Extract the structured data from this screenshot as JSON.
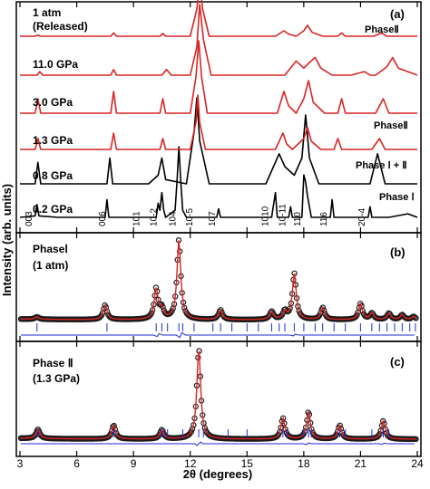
{
  "chart_data": [
    {
      "panel_label": "(a)",
      "type": "line",
      "xlim": [
        3,
        24
      ],
      "series": [
        {
          "name": "0.2 GPa",
          "color": "#000000",
          "x": [
            3,
            3.8,
            3.9,
            4.0,
            5,
            7.5,
            7.6,
            7.7,
            9.5,
            10.2,
            10.3,
            10.4,
            10.5,
            10.6,
            10.7,
            11.2,
            11.3,
            11.4,
            11.5,
            11.6,
            11.8,
            12.5,
            13.4,
            13.5,
            13.6,
            15,
            16.3,
            16.5,
            16.6,
            17.2,
            17.3,
            17.4,
            17.9,
            18.0,
            18.1,
            18.2,
            18.4,
            19.4,
            19.5,
            19.6,
            20.5,
            21.4,
            21.5,
            21.6,
            22.5,
            23.5,
            24
          ],
          "y": [
            0,
            0.02,
            0.18,
            0.02,
            0,
            0,
            0.25,
            0,
            0,
            0,
            0.2,
            0.1,
            0.35,
            0.1,
            0,
            0.1,
            0.5,
            1.0,
            0.5,
            0.1,
            0,
            0,
            0,
            0.12,
            0,
            0,
            0,
            0.35,
            0,
            0,
            0.15,
            0,
            0,
            0.6,
            0.5,
            0.3,
            0,
            0,
            0.25,
            0,
            0,
            0,
            0.15,
            0,
            0,
            0.05,
            0
          ]
        },
        {
          "name": "0.8 GPa",
          "color": "#000000",
          "x": [
            3,
            3.8,
            3.95,
            4.1,
            5,
            7.6,
            7.75,
            7.9,
            9.8,
            10.3,
            10.5,
            10.7,
            11.8,
            12.2,
            12.35,
            12.5,
            13.0,
            16.0,
            16.7,
            17.0,
            17.5,
            17.9,
            18.1,
            18.3,
            18.8,
            20.0,
            21.5,
            21.9,
            22.3,
            23,
            24
          ],
          "y": [
            0,
            0,
            0.25,
            0,
            0,
            0,
            0.3,
            0,
            0,
            0.1,
            0.3,
            0.05,
            0,
            0.6,
            1.0,
            0.5,
            0,
            0,
            0.35,
            0.2,
            0.1,
            0.3,
            0.8,
            0.3,
            0,
            0,
            0,
            0.35,
            0,
            0,
            0
          ]
        },
        {
          "name": "1.3 GPa",
          "color": "#d92525",
          "x": [
            3,
            3.8,
            3.95,
            4.1,
            5,
            7.8,
            7.95,
            8.1,
            10,
            10.4,
            10.55,
            10.7,
            12.0,
            12.3,
            12.4,
            12.5,
            12.8,
            16.5,
            16.9,
            17.1,
            17.4,
            18.0,
            18.2,
            18.4,
            18.9,
            19.6,
            19.8,
            20.0,
            21.6,
            22.0,
            22.3,
            24
          ],
          "y": [
            0,
            0,
            0.2,
            0,
            0,
            0,
            0.3,
            0,
            0,
            0,
            0.2,
            0,
            0,
            0.5,
            1.0,
            0.5,
            0,
            0,
            0.3,
            0.1,
            0,
            0.2,
            0.4,
            0.15,
            0,
            0,
            0.2,
            0,
            0,
            0.2,
            0,
            0
          ]
        },
        {
          "name": "3.0 GPa",
          "color": "#d92525",
          "x": [
            3,
            3.8,
            3.95,
            4.1,
            5,
            7.8,
            7.95,
            8.1,
            10,
            10.4,
            10.55,
            10.7,
            12.0,
            12.3,
            12.45,
            12.6,
            12.9,
            16.6,
            16.95,
            17.2,
            17.6,
            18.0,
            18.25,
            18.5,
            19.1,
            19.8,
            20.0,
            20.2,
            21.8,
            22.2,
            22.5,
            24
          ],
          "y": [
            0,
            0,
            0.2,
            0,
            0,
            0,
            0.3,
            0,
            0,
            0,
            0.2,
            0,
            0,
            0.5,
            1.0,
            0.5,
            0,
            0,
            0.3,
            0.1,
            0,
            0.2,
            0.45,
            0.15,
            0,
            0,
            0.2,
            0,
            0,
            0.2,
            0,
            0
          ]
        },
        {
          "name": "11.0 GPa",
          "color": "#d92525",
          "x": [
            3,
            3.9,
            4.05,
            4.2,
            5,
            7.8,
            7.95,
            8.1,
            10.5,
            10.75,
            11.0,
            12.0,
            12.35,
            12.5,
            12.7,
            13.1,
            17.0,
            17.6,
            18.0,
            18.3,
            18.6,
            18.9,
            19.5,
            20.5,
            21.2,
            21.5,
            21.8,
            22.4,
            22.7,
            23.0,
            24
          ],
          "y": [
            0,
            0,
            0.05,
            0,
            0,
            0,
            0.08,
            0,
            0,
            0.08,
            0,
            0,
            0.4,
            1.0,
            0.5,
            0,
            0,
            0.2,
            0.1,
            0.18,
            0.25,
            0.1,
            0,
            0,
            0.05,
            0,
            0,
            0.12,
            0.25,
            0.1,
            0
          ]
        },
        {
          "name": "1 atm (Released)",
          "color": "#d92525",
          "x": [
            3,
            3.8,
            3.95,
            4.1,
            5,
            7.8,
            7.95,
            8.1,
            10,
            10.4,
            10.55,
            10.7,
            12.0,
            12.35,
            12.5,
            12.65,
            13.0,
            16.5,
            16.95,
            17.2,
            17.6,
            18.0,
            18.2,
            18.45,
            19.0,
            19.8,
            20.0,
            20.2,
            21.7,
            22.1,
            22.4,
            24
          ],
          "y": [
            0,
            0,
            0.02,
            0,
            0,
            0,
            0.06,
            0,
            0,
            0,
            0.05,
            0,
            0,
            0.5,
            1.0,
            0.5,
            0,
            0,
            0.1,
            0.04,
            0,
            0.1,
            0.2,
            0.07,
            0,
            0,
            0.06,
            0,
            0,
            0.06,
            0,
            0
          ]
        }
      ],
      "pressure_labels": [
        "0.2 GPa",
        "0.8 GPa",
        "1.3 GPa",
        "3.0 GPa",
        "11.0 GPa",
        "1 atm",
        "(Released)"
      ],
      "phase_labels": [
        "PhaseⅡ",
        "PhaseⅡ",
        "Phase Ⅰ + Ⅱ",
        "Phase Ⅰ"
      ],
      "peak_labels": [
        {
          "text": "003",
          "x": 3.9
        },
        {
          "text": "006",
          "x": 7.8
        },
        {
          "text": "101",
          "x": 9.6
        },
        {
          "text": "10-2",
          "x": 10.5
        },
        {
          "text": "104",
          "x": 11.5
        },
        {
          "text": "10-5",
          "x": 12.4
        },
        {
          "text": "107",
          "x": 13.6
        },
        {
          "text": "1010",
          "x": 16.4
        },
        {
          "text": "10-11",
          "x": 17.3
        },
        {
          "text": "110",
          "x": 18.1
        },
        {
          "text": "116",
          "x": 19.5
        },
        {
          "text": "20-4",
          "x": 21.5
        }
      ]
    },
    {
      "panel_label": "(b)",
      "type": "scatter",
      "phase_label": "PhaseⅠ",
      "condition_label": "(1 atm)",
      "xlim": [
        3,
        24
      ],
      "peaks": [
        {
          "x": 3.9,
          "y": 0.03
        },
        {
          "x": 7.5,
          "y": 0.18
        },
        {
          "x": 10.2,
          "y": 0.38
        },
        {
          "x": 10.5,
          "y": 0.12
        },
        {
          "x": 11.4,
          "y": 1.0
        },
        {
          "x": 13.6,
          "y": 0.12
        },
        {
          "x": 16.3,
          "y": 0.1
        },
        {
          "x": 17.0,
          "y": 0.1
        },
        {
          "x": 17.5,
          "y": 0.58
        },
        {
          "x": 19.0,
          "y": 0.15
        },
        {
          "x": 21.0,
          "y": 0.2
        },
        {
          "x": 21.6,
          "y": 0.08
        },
        {
          "x": 22.5,
          "y": 0.08
        },
        {
          "x": 23.2,
          "y": 0.06
        },
        {
          "x": 23.8,
          "y": 0.04
        }
      ],
      "bragg_ticks": [
        3.9,
        7.6,
        10.2,
        10.5,
        10.8,
        11.4,
        11.6,
        12.2,
        13.2,
        13.6,
        14.2,
        15.0,
        15.6,
        16.3,
        16.7,
        17.0,
        17.5,
        18.0,
        18.6,
        19.0,
        19.6,
        20.2,
        21.0,
        21.6,
        22.0,
        22.4,
        22.8,
        23.2,
        23.6,
        23.9
      ],
      "difference_features": [
        {
          "x": 10.3,
          "y": 0.35
        },
        {
          "x": 11.5,
          "y": 0.6
        },
        {
          "x": 17.5,
          "y": 0.2
        }
      ],
      "colors": {
        "observed": "#1a1a1a",
        "calculated": "#d92525",
        "bragg": "#1f2bd9",
        "difference": "#1f2bd9"
      }
    },
    {
      "panel_label": "(c)",
      "type": "scatter",
      "phase_label": "Phase Ⅱ",
      "condition_label": "(1.3 GPa)",
      "xlim": [
        3,
        24
      ],
      "peaks": [
        {
          "x": 3.95,
          "y": 0.1
        },
        {
          "x": 7.95,
          "y": 0.15
        },
        {
          "x": 10.5,
          "y": 0.1
        },
        {
          "x": 12.45,
          "y": 1.0
        },
        {
          "x": 16.9,
          "y": 0.23
        },
        {
          "x": 18.25,
          "y": 0.3
        },
        {
          "x": 19.9,
          "y": 0.15
        },
        {
          "x": 22.2,
          "y": 0.2
        }
      ],
      "bragg_ticks": [
        3.95,
        7.95,
        10.5,
        10.8,
        11.6,
        12.45,
        12.7,
        14.0,
        15.0,
        16.9,
        17.1,
        18.0,
        18.25,
        18.4,
        19.9,
        20.2,
        21.6,
        22.2,
        22.5
      ],
      "difference_features": [
        {
          "x": 12.45,
          "y": 0.4
        },
        {
          "x": 18.2,
          "y": 0.2
        },
        {
          "x": 22.2,
          "y": 0.15
        }
      ],
      "colors": {
        "observed": "#1a1a1a",
        "calculated": "#d92525",
        "bragg": "#1f2bd9",
        "difference": "#1f2bd9"
      }
    }
  ],
  "xaxis": {
    "label": "2θ (degrees)",
    "ticks": [
      3,
      6,
      9,
      12,
      15,
      18,
      21,
      24
    ],
    "tick_labels": [
      "3",
      "6",
      "9",
      "12",
      "15",
      "18",
      "21",
      "24"
    ]
  },
  "yaxis": {
    "label": "Intensity (arb. units)"
  }
}
